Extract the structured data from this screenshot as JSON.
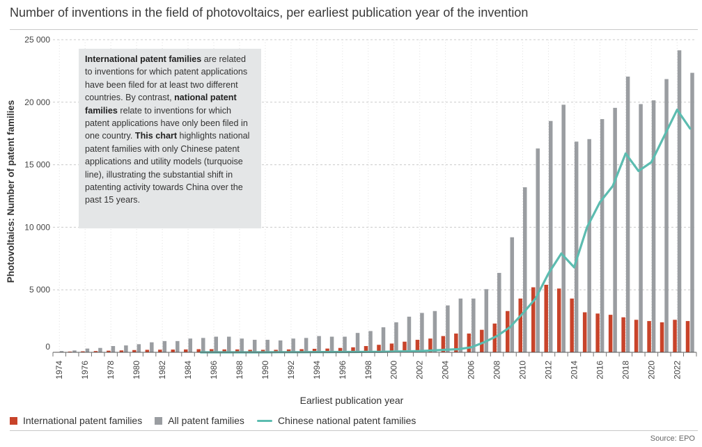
{
  "title": "Number of inventions in the field of photovoltaics, per earliest publication year of the invention",
  "source": "Source: EPO",
  "note": {
    "b1": "International patent families",
    "t1": " are related to inventions for which patent applications have been filed for at least two different countries. By contrast, ",
    "b2": "national patent families",
    "t2": " relate to inventions for which patent applications have only been filed in one country. ",
    "b3": "This chart",
    "t3": " highlights national patent families with only Chinese patent applications and utility models (turquoise line), illustrating the substantial shift in patenting activity towards China over the past 15 years."
  },
  "legend": {
    "international": "International patent families",
    "all": "All patent families",
    "chinese": "Chinese national patent families"
  },
  "colors": {
    "international": "#c8432a",
    "all": "#9a9da1",
    "chinese": "#5cbcb0",
    "grid": "#c9c9c9"
  },
  "chart_data": {
    "type": "bar",
    "xlabel": "Earliest publication year",
    "ylabel": "Photovoltaics: Number of patent families",
    "ylim": [
      0,
      25000
    ],
    "yticks": [
      0,
      5000,
      10000,
      15000,
      20000,
      25000
    ],
    "ytick_labels": [
      "0",
      "5 000",
      "10 000",
      "15 000",
      "20 000",
      "25 000"
    ],
    "grid": "horizontal dashed",
    "legend_position": "bottom",
    "categories": [
      1974,
      1975,
      1976,
      1977,
      1978,
      1979,
      1980,
      1981,
      1982,
      1983,
      1984,
      1985,
      1986,
      1987,
      1988,
      1989,
      1990,
      1991,
      1992,
      1993,
      1994,
      1995,
      1996,
      1997,
      1998,
      1999,
      2000,
      2001,
      2002,
      2003,
      2004,
      2005,
      2006,
      2007,
      2008,
      2009,
      2010,
      2011,
      2012,
      2013,
      2014,
      2015,
      2016,
      2017,
      2018,
      2019,
      2020,
      2021,
      2022,
      2023
    ],
    "xtick_labels": [
      "1974",
      "1976",
      "1978",
      "1980",
      "1982",
      "1984",
      "1986",
      "1988",
      "1990",
      "1992",
      "1994",
      "1996",
      "1998",
      "2000",
      "2002",
      "2004",
      "2006",
      "2008",
      "2010",
      "2012",
      "2014",
      "2016",
      "2018",
      "2020",
      "2022"
    ],
    "series": [
      {
        "name": "International patent families",
        "kind": "bar",
        "values": [
          30,
          60,
          80,
          100,
          130,
          150,
          180,
          200,
          210,
          220,
          230,
          250,
          250,
          230,
          230,
          200,
          200,
          200,
          230,
          250,
          280,
          300,
          350,
          400,
          500,
          600,
          700,
          850,
          1000,
          1100,
          1300,
          1500,
          1500,
          1800,
          2300,
          3300,
          4300,
          5200,
          5400,
          5100,
          4300,
          3200,
          3100,
          3000,
          2800,
          2600,
          2500,
          2400,
          2600,
          2500
        ]
      },
      {
        "name": "All patent families",
        "kind": "bar",
        "values": [
          100,
          150,
          300,
          350,
          500,
          550,
          650,
          800,
          900,
          900,
          1100,
          1150,
          1250,
          1250,
          1100,
          1000,
          1000,
          950,
          1100,
          1150,
          1300,
          1250,
          1250,
          1550,
          1700,
          2000,
          2400,
          2850,
          3150,
          3300,
          3750,
          4300,
          4300,
          5050,
          6350,
          9200,
          13200,
          16300,
          18500,
          19800,
          16850,
          17050,
          18650,
          19550,
          22050,
          19850,
          20150,
          21850,
          24150,
          22350
        ]
      },
      {
        "name": "Chinese national patent families",
        "kind": "line",
        "values": [
          0,
          0,
          0,
          0,
          0,
          0,
          0,
          0,
          0,
          0,
          0,
          0,
          0,
          0,
          0,
          0,
          0,
          10,
          10,
          10,
          20,
          20,
          30,
          30,
          40,
          40,
          60,
          80,
          100,
          150,
          200,
          250,
          400,
          800,
          1300,
          2000,
          3100,
          4300,
          6300,
          7900,
          6800,
          10000,
          12000,
          13300,
          15900,
          14500,
          15200,
          17300,
          19400,
          17900
        ]
      }
    ]
  }
}
